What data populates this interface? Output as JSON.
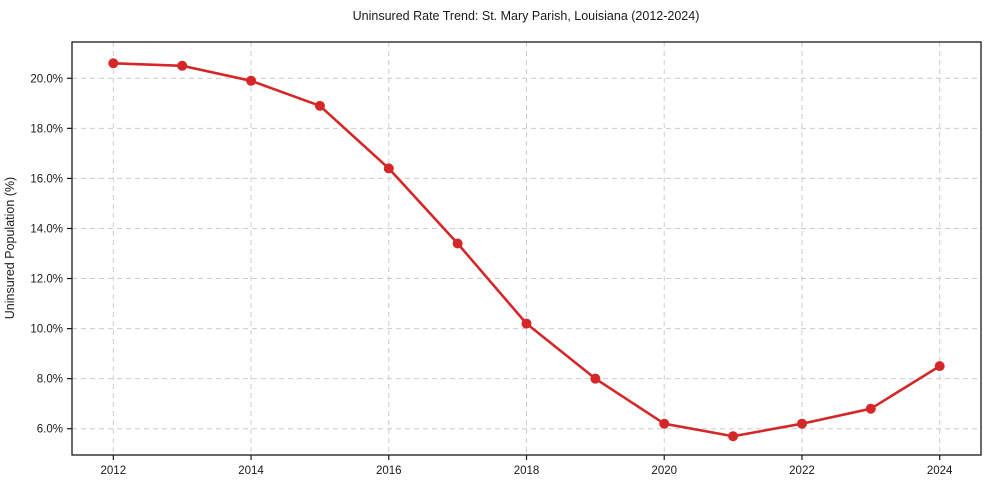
{
  "chart_data": {
    "type": "line",
    "title": "Uninsured Rate Trend: St. Mary Parish, Louisiana (2012-2024)",
    "xlabel": "",
    "ylabel": "Uninsured Population (%)",
    "x": [
      2012,
      2013,
      2014,
      2015,
      2016,
      2017,
      2018,
      2019,
      2020,
      2021,
      2022,
      2023,
      2024
    ],
    "values": [
      20.6,
      20.5,
      19.9,
      18.9,
      16.4,
      13.4,
      10.2,
      8.0,
      6.2,
      5.7,
      6.2,
      6.8,
      8.5
    ],
    "series_name": "Uninsured rate",
    "xticks": [
      2012,
      2014,
      2016,
      2018,
      2020,
      2022,
      2024
    ],
    "xtick_labels": [
      "2012",
      "2014",
      "2016",
      "2018",
      "2020",
      "2022",
      "2024"
    ],
    "yticks": [
      6,
      8,
      10,
      12,
      14,
      16,
      18,
      20
    ],
    "ytick_labels": [
      "6.0%",
      "8.0%",
      "10.0%",
      "12.0%",
      "14.0%",
      "16.0%",
      "18.0%",
      "20.0%"
    ],
    "xlim": [
      2011.4,
      2024.6
    ],
    "ylim": [
      4.95,
      21.45
    ],
    "grid": true,
    "grid_style": "dashed",
    "legend": false,
    "line_color": "#d62728",
    "marker_color": "#d62728",
    "marker": "circle",
    "grid_color": "#cccccc",
    "axis_color": "#1a1a1a",
    "background": "#ffffff"
  }
}
